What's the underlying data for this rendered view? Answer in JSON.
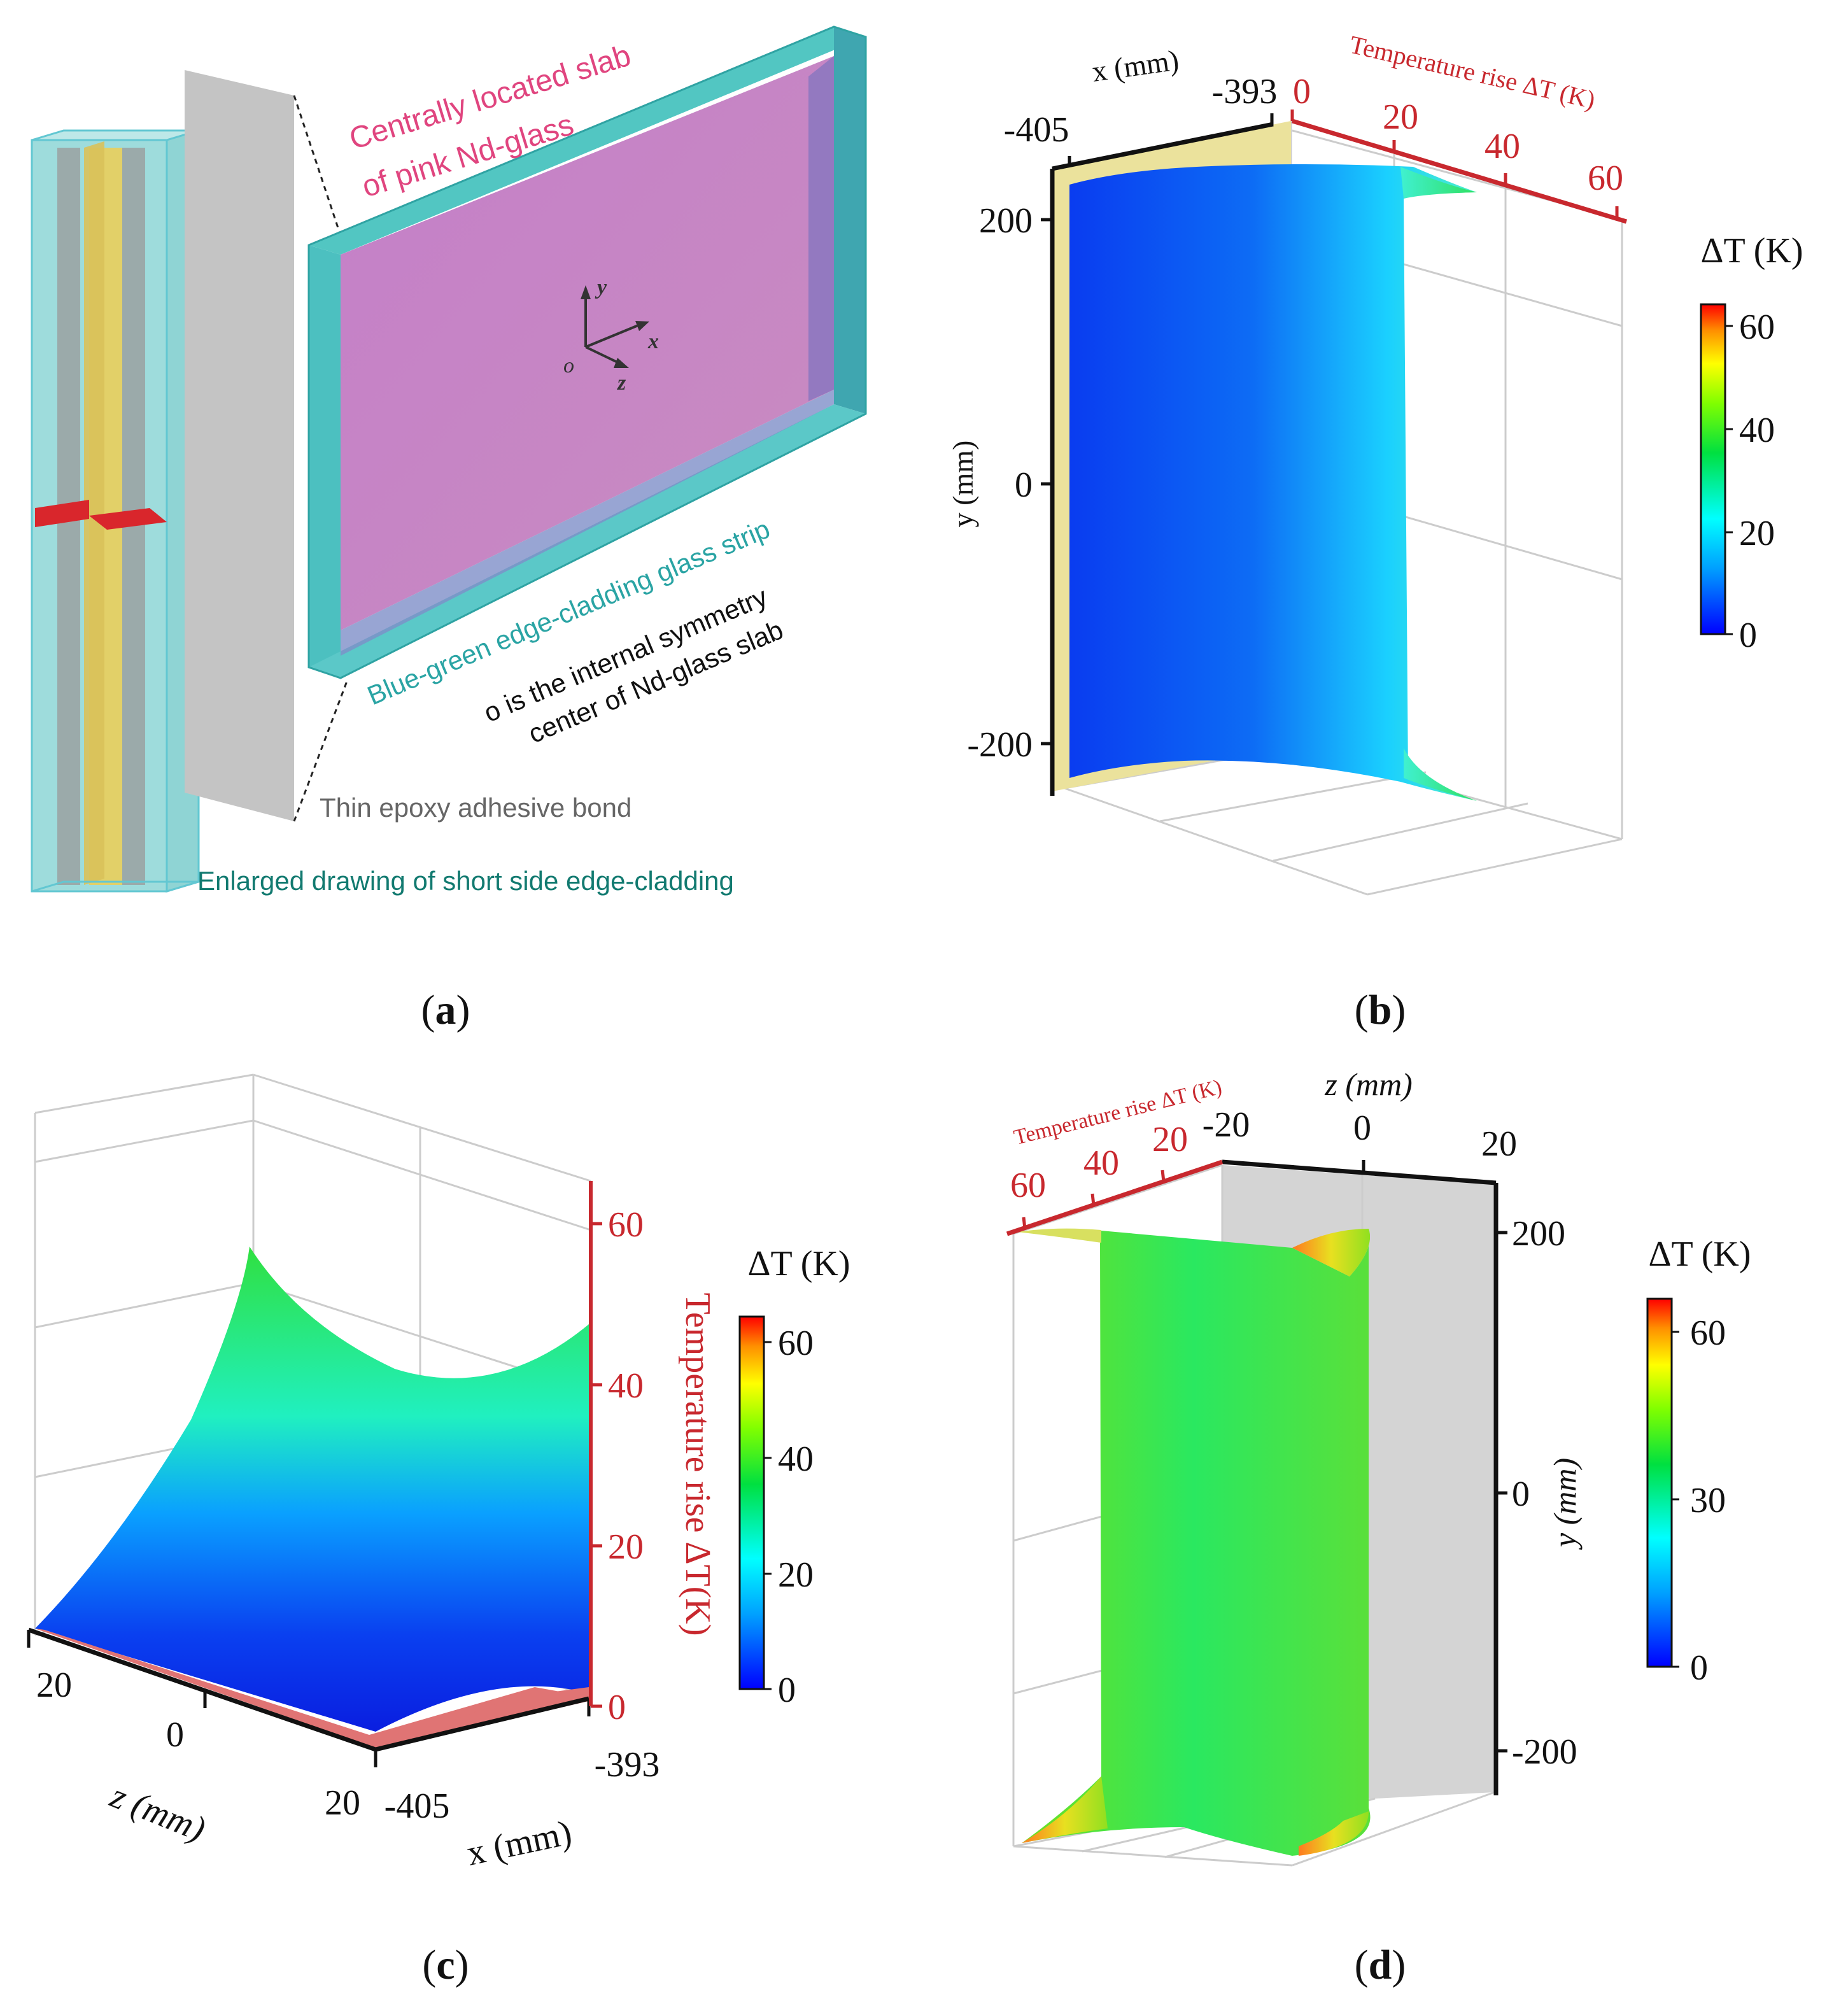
{
  "panels": {
    "a": {
      "label_open": "(",
      "letter": "a",
      "label_close": ")",
      "annotations": {
        "slab_line1": "Centrally located slab",
        "slab_line2": "of pink Nd-glass",
        "cladding": "Blue-green edge-cladding glass strip",
        "symmetry_line1": "o is the internal symmetry",
        "symmetry_line2": "center of Nd-glass slab",
        "epoxy": "Thin epoxy adhesive bond",
        "enlarged": "Enlarged drawing of short side edge-cladding"
      },
      "axes": {
        "x": "x",
        "y": "y",
        "z": "z",
        "origin": "o"
      },
      "colors": {
        "slab": "#c988c4",
        "cladding": "#3dbcbc",
        "epoxy": "#c4c4c4",
        "yellow": "#e2d068",
        "marker": "#d9262c"
      }
    },
    "b": {
      "label_open": "(",
      "letter": "b",
      "label_close": ")",
      "x_axis_label": "x (mm)",
      "x_ticks": [
        "-405",
        "-393"
      ],
      "t_axis_label": "Temperature rise ΔT (K)",
      "t_ticks": [
        "0",
        "20",
        "40",
        "60"
      ],
      "y_axis_label": "y (mm)",
      "y_ticks": [
        "200",
        "0",
        "-200"
      ],
      "colorbar": {
        "title": "ΔT (K)",
        "ticks": [
          "60",
          "40",
          "20",
          "0"
        ]
      }
    },
    "c": {
      "label_open": "(",
      "letter": "c",
      "label_close": ")",
      "t_axis_label": "Temperature rise ΔT(K)",
      "t_ticks": [
        "60",
        "40",
        "20",
        "0"
      ],
      "z_axis_label": "z (mm)",
      "z_ticks": [
        "20",
        "0",
        "20"
      ],
      "x_axis_label": "x (mm)",
      "x_ticks": [
        "-405",
        "-393"
      ],
      "colorbar": {
        "title": "ΔT (K)",
        "ticks": [
          "60",
          "40",
          "20",
          "0"
        ]
      }
    },
    "d": {
      "label_open": "(",
      "letter": "d",
      "label_close": ")",
      "t_axis_label": "Temperature rise ΔT (K)",
      "t_ticks": [
        "60",
        "40",
        "20"
      ],
      "z_axis_label": "z (mm)",
      "z_ticks": [
        "-20",
        "0",
        "20"
      ],
      "y_axis_label": "y (mm)",
      "y_ticks": [
        "200",
        "0",
        "-200"
      ],
      "colorbar": {
        "title": "ΔT (K)",
        "ticks": [
          "60",
          "30",
          "0"
        ]
      }
    }
  },
  "colormap": [
    "#0000ff",
    "#00b4ff",
    "#00ffb4",
    "#00e000",
    "#b4ff00",
    "#ffe600",
    "#ff8c00",
    "#ff0000"
  ]
}
